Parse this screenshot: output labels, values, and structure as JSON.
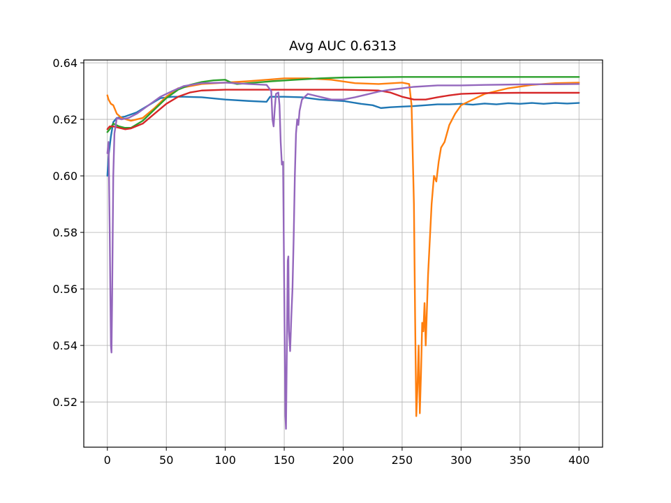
{
  "chart_data": {
    "type": "line",
    "title": "Avg AUC 0.6313",
    "xlabel": "",
    "ylabel": "",
    "xlim": [
      -20,
      420
    ],
    "ylim": [
      0.504,
      0.641
    ],
    "xticks": [
      0,
      50,
      100,
      150,
      200,
      250,
      300,
      350,
      400
    ],
    "yticks": [
      0.52,
      0.54,
      0.56,
      0.58,
      0.6,
      0.62,
      0.64
    ],
    "xtick_labels": [
      "0",
      "50",
      "100",
      "150",
      "200",
      "250",
      "300",
      "350",
      "400"
    ],
    "ytick_labels": [
      "0.52",
      "0.54",
      "0.56",
      "0.58",
      "0.60",
      "0.62",
      "0.64"
    ],
    "grid": true,
    "legend": "none",
    "series": [
      {
        "color": "#1f77b4",
        "points": [
          [
            0,
            0.6
          ],
          [
            1,
            0.607
          ],
          [
            3,
            0.614
          ],
          [
            5,
            0.619
          ],
          [
            8,
            0.6205
          ],
          [
            15,
            0.621
          ],
          [
            25,
            0.6225
          ],
          [
            35,
            0.625
          ],
          [
            45,
            0.6275
          ],
          [
            55,
            0.628
          ],
          [
            65,
            0.628
          ],
          [
            80,
            0.6278
          ],
          [
            100,
            0.627
          ],
          [
            120,
            0.6265
          ],
          [
            135,
            0.6262
          ],
          [
            138,
            0.628
          ],
          [
            150,
            0.628
          ],
          [
            165,
            0.6278
          ],
          [
            180,
            0.627
          ],
          [
            200,
            0.6265
          ],
          [
            215,
            0.6255
          ],
          [
            225,
            0.625
          ],
          [
            232,
            0.624
          ],
          [
            240,
            0.6243
          ],
          [
            250,
            0.6245
          ],
          [
            260,
            0.6247
          ],
          [
            270,
            0.625
          ],
          [
            280,
            0.6253
          ],
          [
            290,
            0.6253
          ],
          [
            300,
            0.6255
          ],
          [
            310,
            0.6252
          ],
          [
            320,
            0.6256
          ],
          [
            330,
            0.6253
          ],
          [
            340,
            0.6257
          ],
          [
            350,
            0.6255
          ],
          [
            360,
            0.6258
          ],
          [
            370,
            0.6255
          ],
          [
            380,
            0.6258
          ],
          [
            390,
            0.6256
          ],
          [
            400,
            0.6258
          ]
        ]
      },
      {
        "color": "#ff7f0e",
        "points": [
          [
            0,
            0.6285
          ],
          [
            1,
            0.627
          ],
          [
            3,
            0.6255
          ],
          [
            5,
            0.625
          ],
          [
            8,
            0.622
          ],
          [
            12,
            0.6205
          ],
          [
            20,
            0.6195
          ],
          [
            30,
            0.6205
          ],
          [
            40,
            0.624
          ],
          [
            50,
            0.628
          ],
          [
            60,
            0.631
          ],
          [
            80,
            0.6325
          ],
          [
            100,
            0.633
          ],
          [
            120,
            0.6335
          ],
          [
            150,
            0.6345
          ],
          [
            170,
            0.6345
          ],
          [
            190,
            0.634
          ],
          [
            210,
            0.6328
          ],
          [
            230,
            0.6325
          ],
          [
            250,
            0.633
          ],
          [
            256,
            0.6325
          ],
          [
            258,
            0.625
          ],
          [
            260,
            0.59
          ],
          [
            261,
            0.55
          ],
          [
            262,
            0.515
          ],
          [
            263,
            0.525
          ],
          [
            264,
            0.54
          ],
          [
            265,
            0.516
          ],
          [
            266,
            0.53
          ],
          [
            267,
            0.548
          ],
          [
            268,
            0.545
          ],
          [
            269,
            0.555
          ],
          [
            270,
            0.54
          ],
          [
            272,
            0.565
          ],
          [
            275,
            0.59
          ],
          [
            277,
            0.6
          ],
          [
            279,
            0.598
          ],
          [
            281,
            0.605
          ],
          [
            283,
            0.61
          ],
          [
            286,
            0.612
          ],
          [
            290,
            0.618
          ],
          [
            295,
            0.622
          ],
          [
            300,
            0.625
          ],
          [
            310,
            0.627
          ],
          [
            320,
            0.629
          ],
          [
            340,
            0.631
          ],
          [
            360,
            0.6322
          ],
          [
            380,
            0.6328
          ],
          [
            400,
            0.633
          ]
        ]
      },
      {
        "color": "#2ca02c",
        "points": [
          [
            0,
            0.6155
          ],
          [
            2,
            0.6165
          ],
          [
            5,
            0.6185
          ],
          [
            10,
            0.6175
          ],
          [
            15,
            0.617
          ],
          [
            20,
            0.617
          ],
          [
            30,
            0.6195
          ],
          [
            40,
            0.6235
          ],
          [
            50,
            0.6275
          ],
          [
            60,
            0.6305
          ],
          [
            70,
            0.6322
          ],
          [
            80,
            0.6332
          ],
          [
            90,
            0.6338
          ],
          [
            100,
            0.634
          ],
          [
            105,
            0.633
          ],
          [
            110,
            0.6325
          ],
          [
            120,
            0.6328
          ],
          [
            140,
            0.6335
          ],
          [
            160,
            0.634
          ],
          [
            180,
            0.6345
          ],
          [
            200,
            0.6348
          ],
          [
            250,
            0.635
          ],
          [
            300,
            0.635
          ],
          [
            350,
            0.635
          ],
          [
            400,
            0.635
          ]
        ]
      },
      {
        "color": "#d62728",
        "points": [
          [
            0,
            0.6165
          ],
          [
            2,
            0.6175
          ],
          [
            5,
            0.6175
          ],
          [
            10,
            0.617
          ],
          [
            15,
            0.6165
          ],
          [
            20,
            0.6168
          ],
          [
            30,
            0.6185
          ],
          [
            40,
            0.622
          ],
          [
            50,
            0.6255
          ],
          [
            60,
            0.628
          ],
          [
            70,
            0.6295
          ],
          [
            80,
            0.6302
          ],
          [
            100,
            0.6305
          ],
          [
            150,
            0.6305
          ],
          [
            200,
            0.6305
          ],
          [
            230,
            0.6302
          ],
          [
            240,
            0.6295
          ],
          [
            250,
            0.628
          ],
          [
            260,
            0.627
          ],
          [
            270,
            0.627
          ],
          [
            280,
            0.6278
          ],
          [
            290,
            0.6285
          ],
          [
            300,
            0.629
          ],
          [
            320,
            0.6293
          ],
          [
            350,
            0.6294
          ],
          [
            400,
            0.6294
          ]
        ]
      },
      {
        "color": "#9467bd",
        "points": [
          [
            0,
            0.608
          ],
          [
            1,
            0.612
          ],
          [
            2,
            0.58
          ],
          [
            3,
            0.54
          ],
          [
            3.5,
            0.5375
          ],
          [
            4,
            0.555
          ],
          [
            5,
            0.6
          ],
          [
            6,
            0.615
          ],
          [
            8,
            0.6205
          ],
          [
            12,
            0.62
          ],
          [
            18,
            0.6205
          ],
          [
            25,
            0.622
          ],
          [
            35,
            0.625
          ],
          [
            45,
            0.628
          ],
          [
            55,
            0.63
          ],
          [
            65,
            0.6318
          ],
          [
            80,
            0.6328
          ],
          [
            100,
            0.633
          ],
          [
            120,
            0.6325
          ],
          [
            135,
            0.6322
          ],
          [
            139,
            0.63
          ],
          [
            140,
            0.62
          ],
          [
            141,
            0.6175
          ],
          [
            142,
            0.624
          ],
          [
            143,
            0.629
          ],
          [
            145,
            0.6295
          ],
          [
            146,
            0.625
          ],
          [
            147,
            0.612
          ],
          [
            148,
            0.604
          ],
          [
            149,
            0.605
          ],
          [
            150,
            0.56
          ],
          [
            151,
            0.515
          ],
          [
            151.5,
            0.5105
          ],
          [
            152,
            0.53
          ],
          [
            153,
            0.57
          ],
          [
            153.5,
            0.5715
          ],
          [
            154,
            0.545
          ],
          [
            155,
            0.538
          ],
          [
            156,
            0.55
          ],
          [
            157,
            0.56
          ],
          [
            158,
            0.578
          ],
          [
            159,
            0.6
          ],
          [
            160,
            0.615
          ],
          [
            161,
            0.62
          ],
          [
            162,
            0.618
          ],
          [
            163,
            0.623
          ],
          [
            165,
            0.627
          ],
          [
            170,
            0.629
          ],
          [
            180,
            0.628
          ],
          [
            190,
            0.627
          ],
          [
            200,
            0.627
          ],
          [
            210,
            0.6278
          ],
          [
            220,
            0.6288
          ],
          [
            230,
            0.6298
          ],
          [
            240,
            0.6305
          ],
          [
            250,
            0.631
          ],
          [
            260,
            0.6315
          ],
          [
            280,
            0.632
          ],
          [
            300,
            0.632
          ],
          [
            320,
            0.6322
          ],
          [
            340,
            0.6323
          ],
          [
            360,
            0.6324
          ],
          [
            380,
            0.6324
          ],
          [
            400,
            0.6325
          ]
        ]
      }
    ]
  }
}
